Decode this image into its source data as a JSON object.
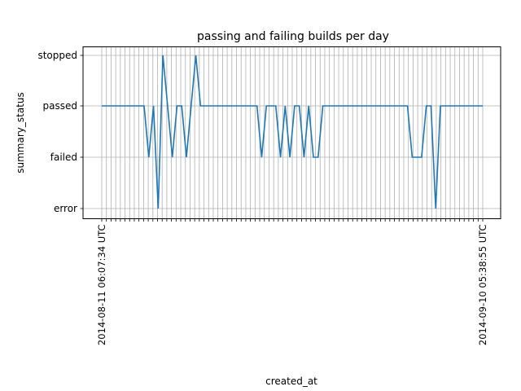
{
  "chart_data": {
    "type": "line",
    "title": "passing and failing builds per day",
    "xlabel": "created_at",
    "ylabel": "summary_status",
    "y_categories": [
      "error",
      "failed",
      "passed",
      "stopped"
    ],
    "grid": true,
    "color": "#1f77b4",
    "x_tick_count": 83,
    "x_tick_labels_partial": [
      "2014-08-11 06:07:34 UTC",
      "2014-09-10 05:38:55 UTC"
    ],
    "values": [
      "passed",
      "passed",
      "passed",
      "passed",
      "passed",
      "passed",
      "passed",
      "passed",
      "passed",
      "passed",
      "failed",
      "passed",
      "error",
      "stopped",
      "passed",
      "failed",
      "passed",
      "passed",
      "failed",
      "passed",
      "stopped",
      "passed",
      "passed",
      "passed",
      "passed",
      "passed",
      "passed",
      "passed",
      "passed",
      "passed",
      "passed",
      "passed",
      "passed",
      "passed",
      "failed",
      "passed",
      "passed",
      "passed",
      "failed",
      "passed",
      "failed",
      "passed",
      "passed",
      "failed",
      "passed",
      "failed",
      "failed",
      "passed",
      "passed",
      "passed",
      "passed",
      "passed",
      "passed",
      "passed",
      "passed",
      "passed",
      "passed",
      "passed",
      "passed",
      "passed",
      "passed",
      "passed",
      "passed",
      "passed",
      "passed",
      "passed",
      "failed",
      "failed",
      "failed",
      "passed",
      "passed",
      "error",
      "passed",
      "passed",
      "passed",
      "passed",
      "passed",
      "passed",
      "passed",
      "passed",
      "passed",
      "passed"
    ]
  }
}
